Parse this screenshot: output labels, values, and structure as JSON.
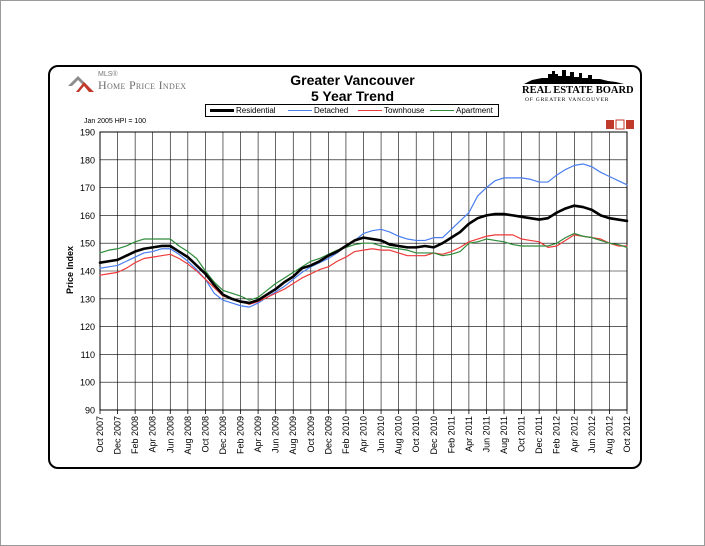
{
  "header": {
    "title_line1": "Greater Vancouver",
    "title_line2": "5 Year Trend",
    "left_logo_small": "MLS®",
    "left_logo_text": "Home Price Index",
    "right_logo_line1": "REAL ESTATE BOARD",
    "right_logo_line2": "OF GREATER VANCOUVER",
    "index_note": "Jan 2005 HPI = 100"
  },
  "colors": {
    "Residential": "#000000",
    "Detached": "#4a7ef0",
    "Townhouse": "#ee3a3a",
    "Apartment": "#2e8b3a",
    "grid": "#000000"
  },
  "chart_data": {
    "type": "line",
    "title": "Greater Vancouver 5 Year Trend",
    "ylabel": "Price Index",
    "xlabel": "",
    "ylim": [
      90,
      190
    ],
    "yticks": [
      90,
      100,
      110,
      120,
      130,
      140,
      150,
      160,
      170,
      180,
      190
    ],
    "grid": "vertical lines at labeled months, horizontal lines at y ticks",
    "legend_position": "top",
    "x": [
      "Oct 2007",
      "Nov 2007",
      "Dec 2007",
      "Jan 2008",
      "Feb 2008",
      "Mar 2008",
      "Apr 2008",
      "May 2008",
      "Jun 2008",
      "Jul 2008",
      "Aug 2008",
      "Sep 2008",
      "Oct 2008",
      "Nov 2008",
      "Dec 2008",
      "Jan 2009",
      "Feb 2009",
      "Mar 2009",
      "Apr 2009",
      "May 2009",
      "Jun 2009",
      "Jul 2009",
      "Aug 2009",
      "Sep 2009",
      "Oct 2009",
      "Nov 2009",
      "Dec 2009",
      "Jan 2010",
      "Feb 2010",
      "Mar 2010",
      "Apr 2010",
      "May 2010",
      "Jun 2010",
      "Jul 2010",
      "Aug 2010",
      "Sep 2010",
      "Oct 2010",
      "Nov 2010",
      "Dec 2010",
      "Jan 2011",
      "Feb 2011",
      "Mar 2011",
      "Apr 2011",
      "May 2011",
      "Jun 2011",
      "Jul 2011",
      "Aug 2011",
      "Sep 2011",
      "Oct 2011",
      "Nov 2011",
      "Dec 2011",
      "Jan 2012",
      "Feb 2012",
      "Mar 2012",
      "Apr 2012",
      "May 2012",
      "Jun 2012",
      "Jul 2012",
      "Aug 2012",
      "Sep 2012",
      "Oct 2012"
    ],
    "tick_labels": [
      "Oct 2007",
      "Dec 2007",
      "Feb 2008",
      "Apr 2008",
      "Jun 2008",
      "Aug 2008",
      "Oct 2008",
      "Dec 2008",
      "Feb 2009",
      "Apr 2009",
      "Jun 2009",
      "Aug 2009",
      "Oct 2009",
      "Dec 2009",
      "Feb 2010",
      "Apr 2010",
      "Jun 2010",
      "Aug 2010",
      "Oct 2010",
      "Dec 2010",
      "Feb 2011",
      "Apr 2011",
      "Jun 2011",
      "Aug 2011",
      "Oct 2011",
      "Dec 2011",
      "Feb 2012",
      "Apr 2012",
      "Jun 2012",
      "Aug 2012",
      "Oct 2012"
    ],
    "series": [
      {
        "name": "Residential",
        "values": [
          143,
          143.5,
          144,
          145.5,
          147,
          148,
          148.5,
          149,
          149,
          147,
          145,
          142,
          139,
          135,
          131.5,
          130,
          129,
          128.5,
          129.5,
          131.5,
          133.5,
          136,
          138,
          141,
          142,
          143.5,
          145.5,
          147,
          149,
          151,
          152,
          151.5,
          151,
          149.5,
          149,
          148.5,
          148.5,
          149,
          148.5,
          150,
          152,
          154,
          157,
          159,
          160,
          160.5,
          160.5,
          160,
          159.5,
          159,
          158.5,
          159,
          161,
          162.5,
          163.5,
          163,
          162,
          160,
          159,
          158.5,
          158
        ]
      },
      {
        "name": "Detached",
        "values": [
          141,
          141.5,
          142,
          143.5,
          145,
          146.5,
          147,
          148,
          148,
          146,
          143.5,
          140.5,
          137,
          132,
          129.5,
          128.5,
          127.5,
          127,
          128.5,
          130.5,
          132.5,
          134.5,
          137,
          139.5,
          141.5,
          143,
          144.5,
          146.5,
          149,
          151,
          153.5,
          154.5,
          155,
          154,
          152.5,
          151.5,
          151,
          151,
          152,
          152,
          155,
          158,
          161,
          167,
          170,
          172.5,
          173.5,
          173.5,
          173.5,
          173,
          172,
          172,
          174.5,
          176.5,
          178,
          178.5,
          177.5,
          175.5,
          174,
          172.5,
          171
        ]
      },
      {
        "name": "Townhouse",
        "values": [
          138.5,
          139,
          139.5,
          141,
          143,
          144.5,
          145,
          145.5,
          146,
          144.5,
          142.5,
          140,
          137,
          134,
          131,
          130,
          129,
          128,
          129,
          130.5,
          132,
          133.5,
          135.5,
          137.5,
          139,
          140.5,
          141.5,
          143.5,
          145,
          147,
          147.5,
          148,
          147.5,
          147.5,
          146.5,
          145.5,
          145.5,
          145.5,
          146.5,
          146,
          147,
          148.5,
          150.5,
          151.5,
          152.5,
          153,
          153,
          153,
          151.5,
          151,
          150.5,
          148.5,
          149,
          151,
          153,
          152.5,
          152,
          151.5,
          150,
          149,
          149
        ]
      },
      {
        "name": "Apartment",
        "values": [
          146.5,
          147.5,
          148,
          149,
          150.5,
          151.5,
          151.5,
          151.5,
          151.5,
          149,
          147,
          144.5,
          140,
          136,
          133,
          132,
          131,
          129.5,
          130.5,
          133,
          135.5,
          137.5,
          139.5,
          141.5,
          143.5,
          144.5,
          146,
          147.5,
          148.5,
          149.5,
          150,
          150,
          149,
          148.5,
          148,
          147.5,
          146.5,
          146.5,
          146.5,
          145.5,
          146,
          147,
          150,
          150.5,
          151.5,
          151,
          150.5,
          149.5,
          149,
          149,
          149,
          149,
          150,
          152,
          153.5,
          152.5,
          152,
          151,
          150,
          149.5,
          148.5
        ]
      }
    ]
  }
}
